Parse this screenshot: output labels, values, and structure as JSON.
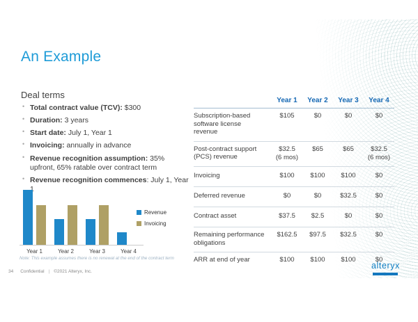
{
  "colors": {
    "title_blue": "#1E9BD7",
    "header_blue": "#1568B4",
    "text_dark": "#404040",
    "bar_blue": "#1F88C9",
    "bar_tan": "#AFA065",
    "note_gray": "#9FB3C4",
    "footer_gray": "#8A8A8A",
    "logo_blue": "#0E7DC2"
  },
  "slide": {
    "title": "An Example",
    "page_number": "34",
    "footer_confidential": "Confidential",
    "footer_divider": "|",
    "footer_copyright": "©2021 Alteryx, Inc.",
    "logo_text": "alteryx",
    "note": "Note: This example assumes there is no renewal at the end of the contract term"
  },
  "deal_terms": {
    "heading": "Deal terms",
    "bullets": [
      {
        "label": "Total contract value (TCV):",
        "rest": " $300"
      },
      {
        "label": "Duration:",
        "rest": " 3 years"
      },
      {
        "label": "Start date:",
        "rest": " July 1, Year 1"
      },
      {
        "label": "Invoicing:",
        "rest": " annually in advance"
      },
      {
        "label": "Revenue recognition assumption:",
        "rest": " 35% upfront, 65% ratable over contract term"
      },
      {
        "label": "Revenue recognition commences",
        "rest": ": July 1, Year 1"
      }
    ]
  },
  "chart_data": {
    "type": "bar",
    "categories": [
      "Year 1",
      "Year 2",
      "Year 3",
      "Year 4"
    ],
    "series": [
      {
        "name": "Revenue",
        "color": "#1F88C9",
        "values": [
          137.5,
          65,
          65,
          32.5
        ]
      },
      {
        "name": "Invoicing",
        "color": "#AFA065",
        "values": [
          100,
          100,
          100,
          0
        ]
      }
    ],
    "title": "",
    "xlabel": "",
    "ylabel": "",
    "ylim": [
      0,
      145
    ],
    "grid": false,
    "legend_position": "right"
  },
  "table": {
    "headers": [
      "Year 1",
      "Year 2",
      "Year 3",
      "Year 4"
    ],
    "rows": [
      {
        "label": "Subscription-based software license revenue",
        "values": [
          "$105",
          "$0",
          "$0",
          "$0"
        ]
      },
      {
        "label": "Post-contract support (PCS) revenue",
        "values": [
          "$32.5\n(6 mos)",
          "$65",
          "$65",
          "$32.5\n(6 mos)"
        ]
      },
      {
        "label": "Invoicing",
        "values": [
          "$100",
          "$100",
          "$100",
          "$0"
        ]
      },
      {
        "label": "Deferred revenue",
        "values": [
          "$0",
          "$0",
          "$32.5",
          "$0"
        ]
      },
      {
        "label": "Contract asset",
        "values": [
          "$37.5",
          "$2.5",
          "$0",
          "$0"
        ]
      },
      {
        "label": "Remaining performance obligations",
        "values": [
          "$162.5",
          "$97.5",
          "$32.5",
          "$0"
        ]
      },
      {
        "label": "ARR at end of year",
        "values": [
          "$100",
          "$100",
          "$100",
          "$0"
        ]
      }
    ]
  }
}
